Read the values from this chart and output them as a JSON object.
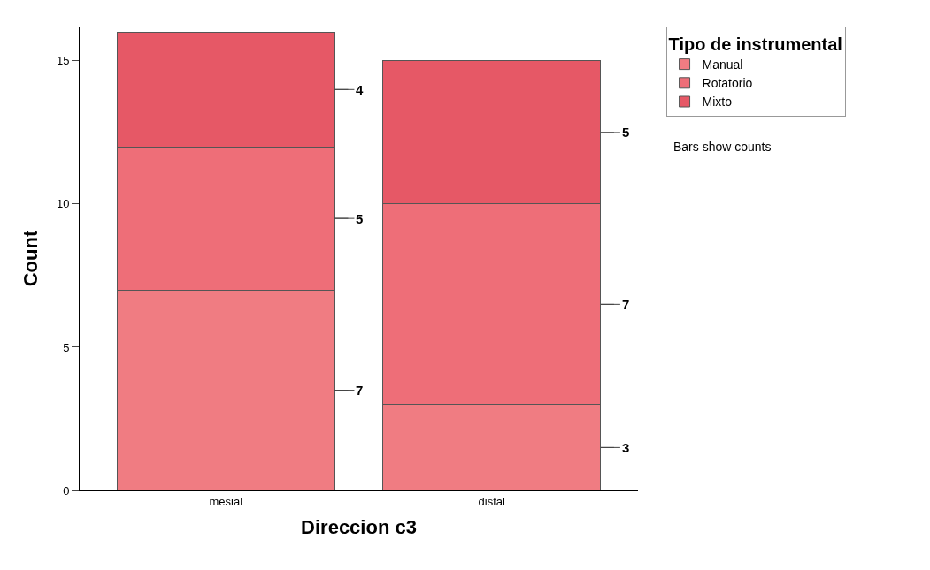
{
  "chart_data": {
    "type": "bar",
    "stacked": true,
    "xlabel": "Direccion c3",
    "ylabel": "Count",
    "legend_title": "Tipo de instrumental",
    "legend": "top right",
    "categories": [
      "mesial",
      "distal"
    ],
    "series": [
      {
        "name": "Manual",
        "color": "#f07c82",
        "values": [
          7,
          3
        ]
      },
      {
        "name": "Rotatorio",
        "color": "#ee6e78",
        "values": [
          5,
          7
        ]
      },
      {
        "name": "Mixto",
        "color": "#e65866",
        "values": [
          4,
          5
        ]
      }
    ],
    "ylim": [
      0,
      16.2
    ],
    "yticks": [
      0,
      5,
      10,
      15
    ],
    "data_labels": true,
    "annotations": [
      "Bars show counts"
    ]
  }
}
